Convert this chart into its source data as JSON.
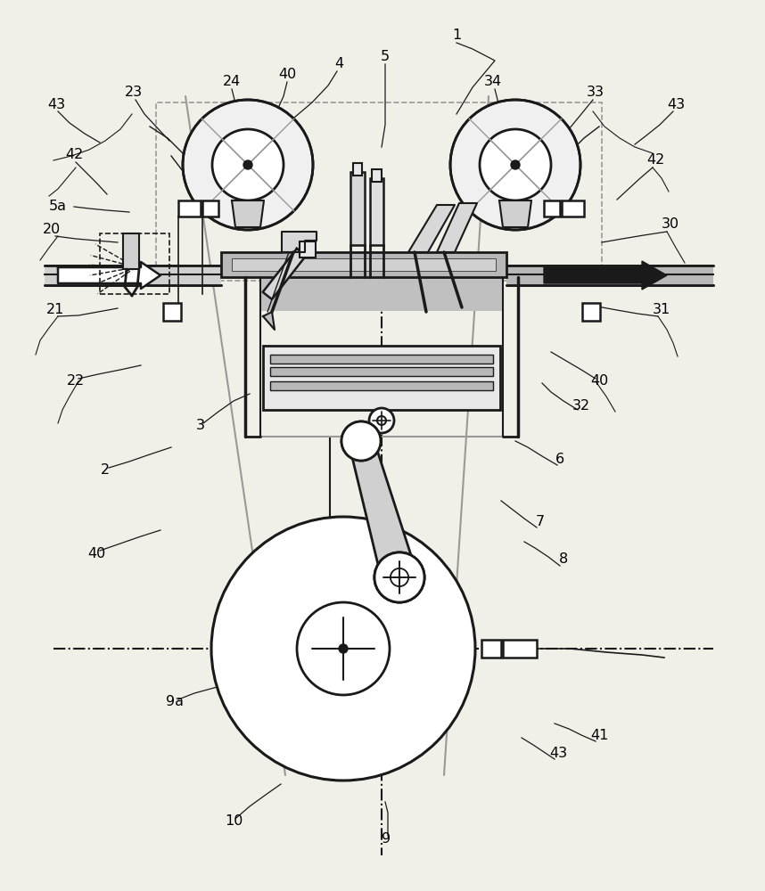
{
  "bg_color": "#f0efe8",
  "lc": "#1a1a1a",
  "gc": "#999999",
  "figsize": [
    8.58,
    10.0
  ],
  "dpi": 100
}
